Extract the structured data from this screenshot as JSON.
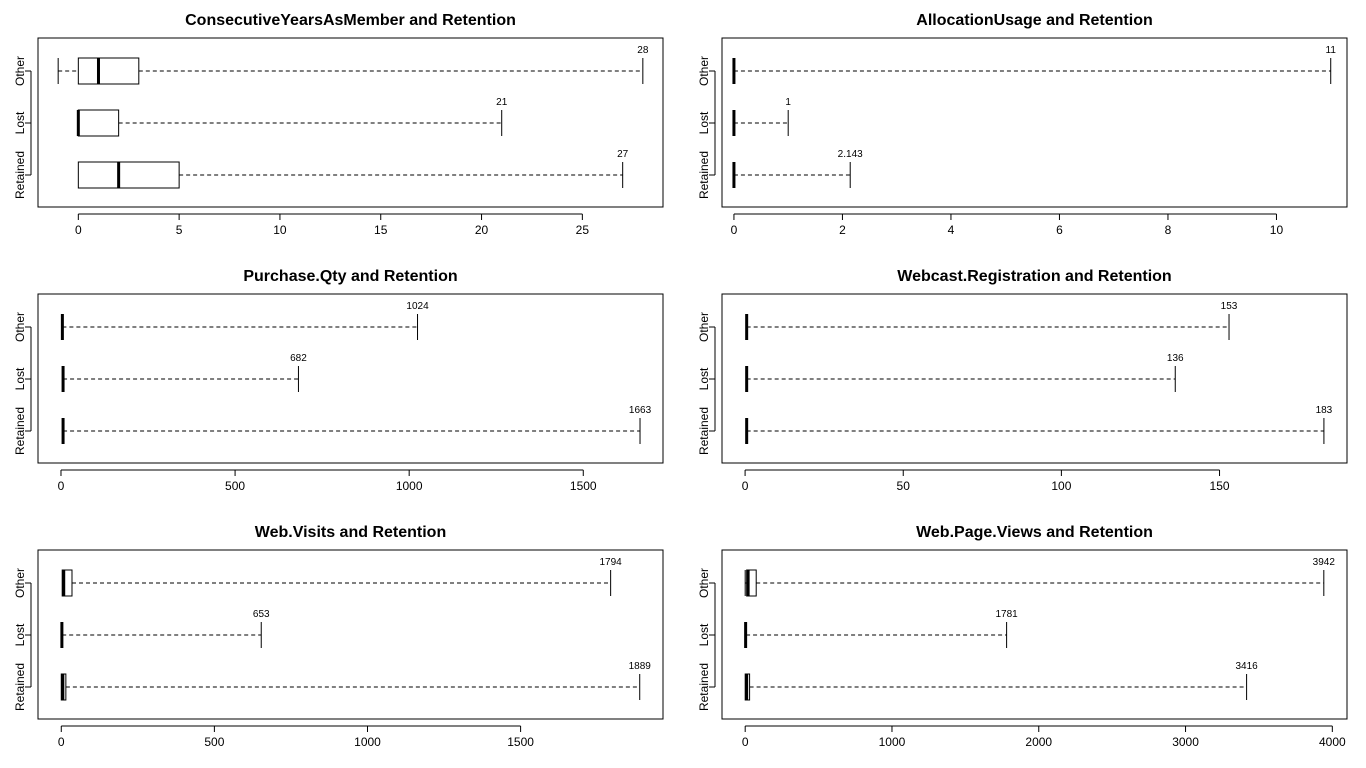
{
  "chart_data": [
    {
      "type": "boxplot",
      "orientation": "horizontal",
      "title": "ConsecutiveYearsAsMember and Retention",
      "categories": [
        "Retained",
        "Lost",
        "Other"
      ],
      "xlim": [
        -2,
        29
      ],
      "xticks": [
        0,
        5,
        10,
        15,
        20,
        25
      ],
      "boxes": [
        {
          "category": "Retained",
          "whisker_low": 0,
          "q1": 0,
          "median": 2,
          "q3": 5,
          "whisker_high": 27,
          "max_label": "27"
        },
        {
          "category": "Lost",
          "whisker_low": 0,
          "q1": 0,
          "median": 0,
          "q3": 2,
          "whisker_high": 21,
          "max_label": "21"
        },
        {
          "category": "Other",
          "whisker_low": -1,
          "q1": 0,
          "median": 1,
          "q3": 3,
          "whisker_high": 28,
          "max_label": "28"
        }
      ]
    },
    {
      "type": "boxplot",
      "orientation": "horizontal",
      "title": "AllocationUsage and Retention",
      "categories": [
        "Retained",
        "Lost",
        "Other"
      ],
      "xlim": [
        -0.22,
        11.3
      ],
      "xticks": [
        0,
        2,
        4,
        6,
        8,
        10
      ],
      "boxes": [
        {
          "category": "Retained",
          "whisker_low": 0,
          "q1": 0,
          "median": 0,
          "q3": 0,
          "whisker_high": 2.143,
          "max_label": "2.143"
        },
        {
          "category": "Lost",
          "whisker_low": 0,
          "q1": 0,
          "median": 0,
          "q3": 0,
          "whisker_high": 1,
          "max_label": "1"
        },
        {
          "category": "Other",
          "whisker_low": 0,
          "q1": 0,
          "median": 0,
          "q3": 0,
          "whisker_high": 11,
          "max_label": "11"
        }
      ]
    },
    {
      "type": "boxplot",
      "orientation": "horizontal",
      "title": "Purchase.Qty and Retention",
      "categories": [
        "Retained",
        "Lost",
        "Other"
      ],
      "xlim": [
        -66,
        1729
      ],
      "xticks": [
        0,
        500,
        1000,
        1500
      ],
      "boxes": [
        {
          "category": "Retained",
          "whisker_low": 6,
          "q1": 6,
          "median": 6,
          "q3": 6,
          "whisker_high": 1663,
          "max_label": "1663"
        },
        {
          "category": "Lost",
          "whisker_low": 6,
          "q1": 6,
          "median": 6,
          "q3": 6,
          "whisker_high": 682,
          "max_label": "682"
        },
        {
          "category": "Other",
          "whisker_low": 4,
          "q1": 4,
          "median": 4,
          "q3": 4,
          "whisker_high": 1024,
          "max_label": "1024"
        }
      ]
    },
    {
      "type": "boxplot",
      "orientation": "horizontal",
      "title": "Webcast.Registration and Retention",
      "categories": [
        "Retained",
        "Lost",
        "Other"
      ],
      "xlim": [
        -7.3,
        190.3
      ],
      "xticks": [
        0,
        50,
        100,
        150
      ],
      "boxes": [
        {
          "category": "Retained",
          "whisker_low": 0.5,
          "q1": 0.5,
          "median": 0.5,
          "q3": 0.5,
          "whisker_high": 183,
          "max_label": "183"
        },
        {
          "category": "Lost",
          "whisker_low": 0.5,
          "q1": 0.5,
          "median": 0.5,
          "q3": 0.5,
          "whisker_high": 136,
          "max_label": "136"
        },
        {
          "category": "Other",
          "whisker_low": 0.5,
          "q1": 0.5,
          "median": 0.5,
          "q3": 0.5,
          "whisker_high": 153,
          "max_label": "153"
        }
      ]
    },
    {
      "type": "boxplot",
      "orientation": "horizontal",
      "title": "Web.Visits and Retention",
      "categories": [
        "Retained",
        "Lost",
        "Other"
      ],
      "xlim": [
        -76,
        1965
      ],
      "xticks": [
        0,
        500,
        1000,
        1500
      ],
      "boxes": [
        {
          "category": "Retained",
          "whisker_low": 0,
          "q1": 0,
          "median": 5,
          "q3": 15,
          "whisker_high": 1889,
          "max_label": "1889"
        },
        {
          "category": "Lost",
          "whisker_low": 0,
          "q1": 0,
          "median": 2,
          "q3": 3,
          "whisker_high": 653,
          "max_label": "653"
        },
        {
          "category": "Other",
          "whisker_low": 0,
          "q1": 3,
          "median": 8,
          "q3": 35,
          "whisker_high": 1794,
          "max_label": "1794"
        }
      ]
    },
    {
      "type": "boxplot",
      "orientation": "horizontal",
      "title": "Web.Page.Views and Retention",
      "categories": [
        "Retained",
        "Lost",
        "Other"
      ],
      "xlim": [
        -158,
        4100
      ],
      "xticks": [
        0,
        1000,
        2000,
        3000,
        4000
      ],
      "boxes": [
        {
          "category": "Retained",
          "whisker_low": 0,
          "q1": 0,
          "median": 10,
          "q3": 30,
          "whisker_high": 3416,
          "max_label": "3416"
        },
        {
          "category": "Lost",
          "whisker_low": 0,
          "q1": 0,
          "median": 3,
          "q3": 6,
          "whisker_high": 1781,
          "max_label": "1781"
        },
        {
          "category": "Other",
          "whisker_low": 0,
          "q1": 10,
          "median": 20,
          "q3": 75,
          "whisker_high": 3942,
          "max_label": "3942"
        }
      ]
    }
  ]
}
